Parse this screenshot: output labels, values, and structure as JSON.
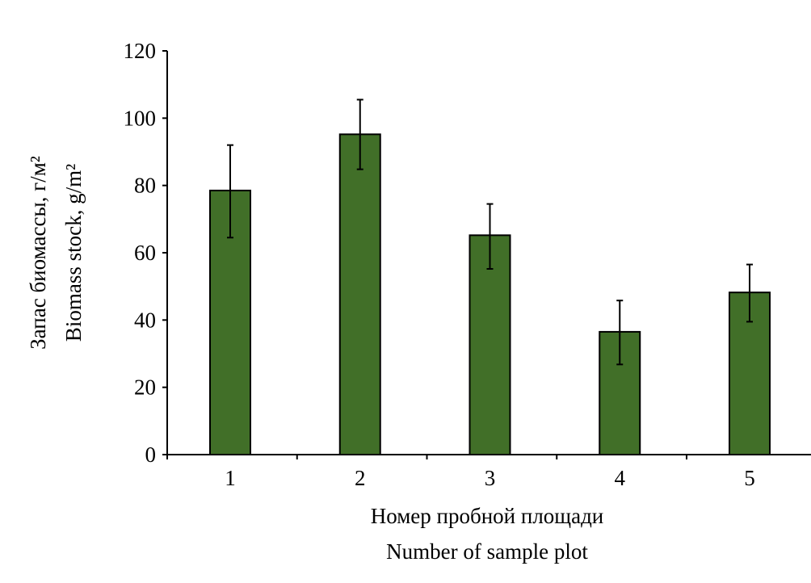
{
  "chart_data": {
    "type": "bar",
    "categories": [
      "1",
      "2",
      "3",
      "4",
      "5"
    ],
    "values": [
      78.5,
      95.2,
      65.2,
      36.5,
      48.2
    ],
    "error_low": [
      64.5,
      84.8,
      55.2,
      26.8,
      39.5
    ],
    "error_high": [
      92.0,
      105.5,
      74.5,
      45.8,
      56.5
    ],
    "ylim": [
      0,
      120
    ],
    "yticks": [
      "0",
      "20",
      "40",
      "60",
      "80",
      "100",
      "120"
    ],
    "xlabel_ru": "Номер пробной площади",
    "xlabel_en": "Number of sample plot",
    "ylabel_ru": "Запас биомассы, г/м²",
    "ylabel_en": "Biomass stock, g/m²",
    "bar_color": "#416f28",
    "grid": false,
    "legend": "none"
  }
}
